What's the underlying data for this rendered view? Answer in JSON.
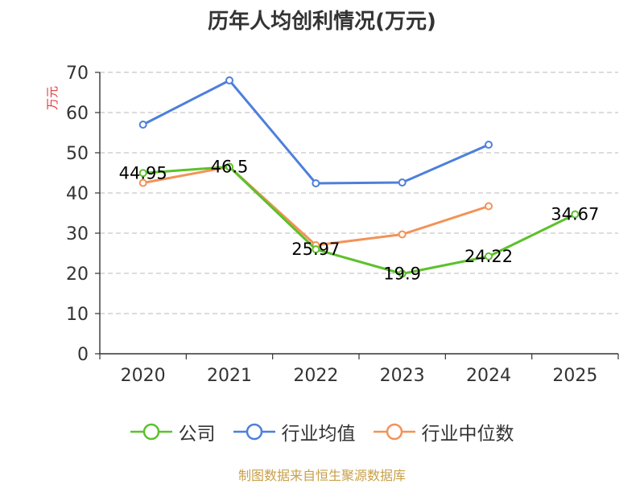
{
  "chart_data": {
    "type": "line",
    "title": "历年人均创利情况(万元)",
    "ylabel": "万元",
    "xlabel": "",
    "categories": [
      "2020",
      "2021",
      "2022",
      "2023",
      "2024",
      "2025"
    ],
    "ylim": [
      0,
      70
    ],
    "yticks": [
      0,
      10,
      20,
      30,
      40,
      50,
      60,
      70
    ],
    "grid": true,
    "legend_position": "bottom",
    "series": [
      {
        "name": "公司",
        "color": "#5cc12a",
        "values": [
          44.95,
          46.5,
          25.97,
          19.9,
          24.22,
          34.67
        ],
        "labels": [
          "44.95",
          "46.5",
          "25.97",
          "19.9",
          "24.22",
          "34.67"
        ]
      },
      {
        "name": "行业均值",
        "color": "#4e7fda",
        "values": [
          57,
          68,
          42.4,
          42.6,
          52,
          null
        ]
      },
      {
        "name": "行业中位数",
        "color": "#f39257",
        "values": [
          42.5,
          46.5,
          27,
          29.7,
          36.7,
          null
        ]
      }
    ]
  },
  "footer": {
    "source": "制图数据来自恒生聚源数据库"
  }
}
